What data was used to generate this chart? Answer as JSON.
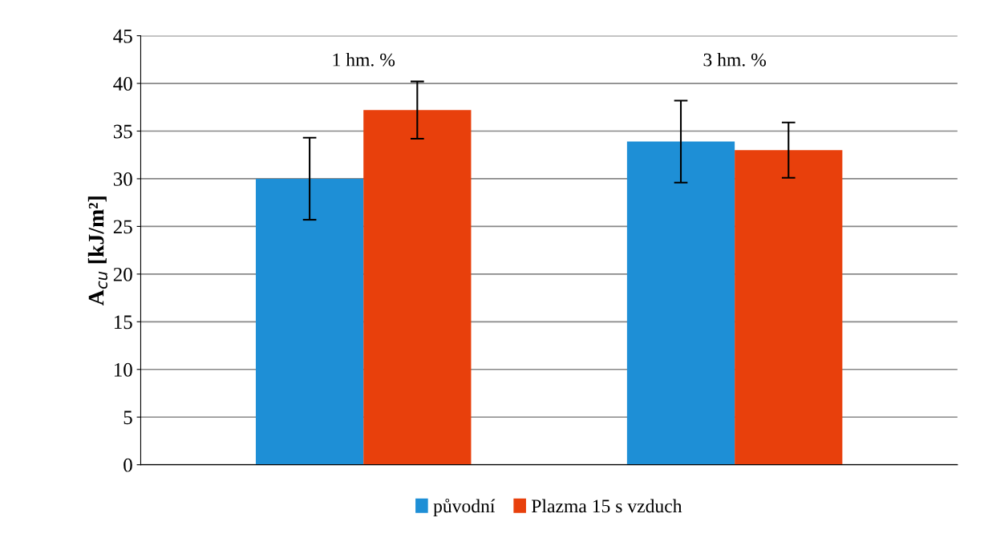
{
  "chart_data": {
    "type": "bar",
    "ylabel": "A$_{cu}$ [kJ/m²]",
    "categories": [
      "1 hm. %",
      "3 hm. %"
    ],
    "series": [
      {
        "name": "původní",
        "color": "#1e8fd6",
        "values": [
          30.0,
          33.9
        ],
        "errors": [
          4.3,
          4.3
        ]
      },
      {
        "name": "Plazma 15 s vzduch",
        "color": "#e8400c",
        "values": [
          37.2,
          33.0
        ],
        "errors": [
          3.0,
          2.9
        ]
      }
    ],
    "ylim": [
      0,
      45
    ],
    "yticks": [
      0,
      5,
      10,
      15,
      20,
      25,
      30,
      35,
      40,
      45
    ],
    "grid": "y",
    "legend": "bottom"
  }
}
